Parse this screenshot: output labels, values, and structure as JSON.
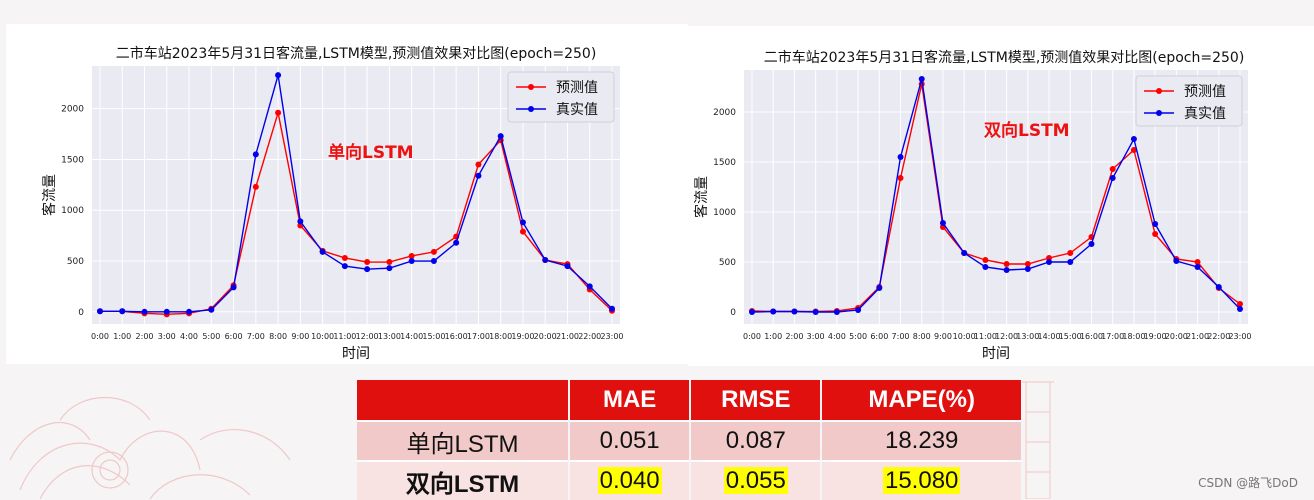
{
  "chart_data": [
    {
      "type": "line",
      "title": "二市车站2023年5月31日客流量,LSTM模型,预测值效果对比图(epoch=250)",
      "xlabel": "时间",
      "ylabel": "客流量",
      "annotation": "单向LSTM",
      "categories": [
        "0:00",
        "1:00",
        "2:00",
        "3:00",
        "4:00",
        "5:00",
        "6:00",
        "7:00",
        "8:00",
        "9:00",
        "10:00",
        "11:00",
        "12:00",
        "13:00",
        "14:00",
        "15:00",
        "16:00",
        "17:00",
        "18:00",
        "19:00",
        "20:00",
        "21:00",
        "22:00",
        "23:00"
      ],
      "yticks": [
        0,
        500,
        1000,
        1500,
        2000
      ],
      "ylim": [
        -120,
        2420
      ],
      "grid": true,
      "legend_position": "top-right",
      "series": [
        {
          "name": "预测值",
          "color": "#ff0000",
          "values": [
            5,
            5,
            -15,
            -25,
            -15,
            30,
            260,
            1230,
            1960,
            850,
            600,
            530,
            490,
            490,
            550,
            590,
            740,
            1450,
            1690,
            790,
            510,
            470,
            220,
            10
          ]
        },
        {
          "name": "真实值",
          "color": "#0000ee",
          "values": [
            5,
            5,
            0,
            0,
            0,
            20,
            240,
            1550,
            2330,
            890,
            590,
            450,
            420,
            430,
            500,
            500,
            680,
            1340,
            1730,
            880,
            510,
            450,
            250,
            30
          ]
        }
      ]
    },
    {
      "type": "line",
      "title": "二市车站2023年5月31日客流量,LSTM模型,预测值效果对比图(epoch=250)",
      "xlabel": "时间",
      "ylabel": "客流量",
      "annotation": "双向LSTM",
      "categories": [
        "0:00",
        "1:00",
        "2:00",
        "3:00",
        "4:00",
        "5:00",
        "6:00",
        "7:00",
        "8:00",
        "9:00",
        "10:00",
        "11:00",
        "12:00",
        "13:00",
        "14:00",
        "15:00",
        "16:00",
        "17:00",
        "18:00",
        "19:00",
        "20:00",
        "21:00",
        "22:00",
        "23:00"
      ],
      "yticks": [
        0,
        500,
        1000,
        1500,
        2000
      ],
      "ylim": [
        -120,
        2420
      ],
      "grid": true,
      "legend_position": "top-right",
      "series": [
        {
          "name": "预测值",
          "color": "#ff0000",
          "values": [
            10,
            5,
            5,
            5,
            10,
            40,
            250,
            1340,
            2280,
            850,
            590,
            520,
            480,
            480,
            540,
            590,
            750,
            1430,
            1620,
            780,
            530,
            500,
            240,
            80
          ]
        },
        {
          "name": "真实值",
          "color": "#0000ee",
          "values": [
            0,
            5,
            5,
            0,
            0,
            20,
            240,
            1550,
            2330,
            890,
            590,
            450,
            420,
            430,
            500,
            500,
            680,
            1340,
            1730,
            880,
            510,
            450,
            250,
            30
          ]
        }
      ]
    }
  ],
  "metrics_table": {
    "headers": [
      "",
      "MAE",
      "RMSE",
      "MAPE(%)"
    ],
    "rows": [
      {
        "name": "单向LSTM",
        "mae": "0.051",
        "rmse": "0.087",
        "mape": "18.239"
      },
      {
        "name": "双向LSTM",
        "mae": "0.040",
        "rmse": "0.055",
        "mape": "15.080"
      }
    ]
  },
  "watermark": "CSDN @路飞DoD",
  "colors": {
    "header_red": "#e0100f",
    "highlight": "#ffff00",
    "plot_bg": "#eaeaf2"
  }
}
